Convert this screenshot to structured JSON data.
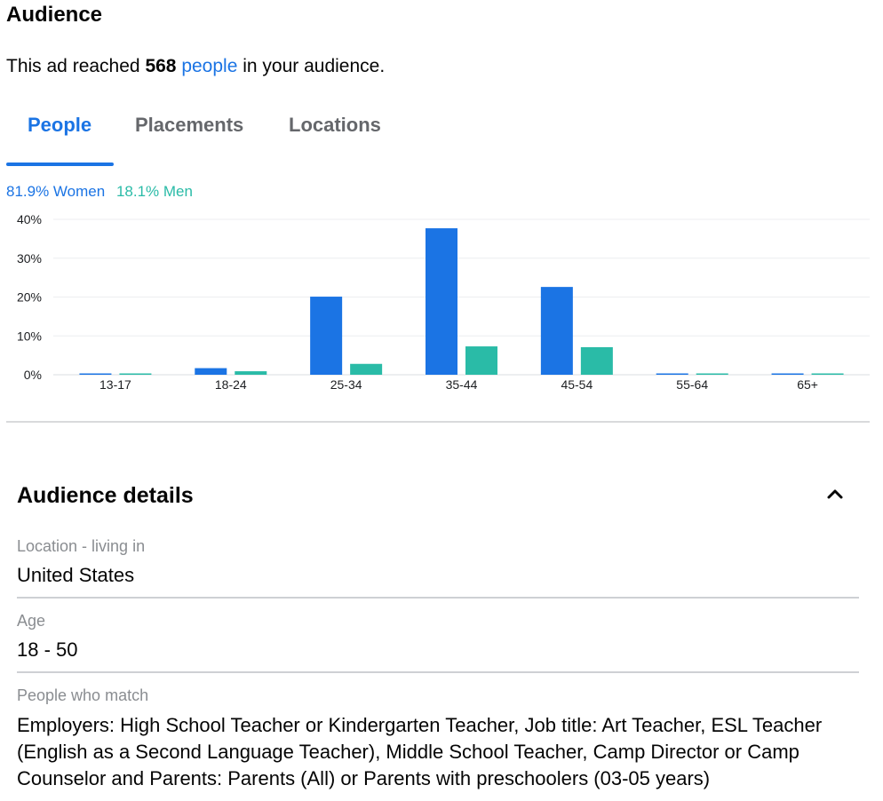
{
  "audience": {
    "title": "Audience",
    "reach_prefix": "This ad reached ",
    "reach_count": "568",
    "reach_link": "people",
    "reach_suffix": " in your audience."
  },
  "tabs": [
    {
      "label": "People",
      "active": true
    },
    {
      "label": "Placements",
      "active": false
    },
    {
      "label": "Locations",
      "active": false
    }
  ],
  "gender": {
    "women_label": "81.9% Women",
    "men_label": "18.1% Men",
    "women_color": "#1b74e4",
    "men_color": "#2abba7"
  },
  "chart_data": {
    "type": "bar",
    "categories": [
      "13-17",
      "18-24",
      "25-34",
      "35-44",
      "45-54",
      "55-64",
      "65+"
    ],
    "series": [
      {
        "name": "Women",
        "color": "#1b74e4",
        "values": [
          0.3,
          1.7,
          20.1,
          37.7,
          22.6,
          0.3,
          0.3
        ]
      },
      {
        "name": "Men",
        "color": "#2abba7",
        "values": [
          0.3,
          0.9,
          2.8,
          7.3,
          7.1,
          0.3,
          0.3
        ]
      }
    ],
    "yticks": [
      "0%",
      "10%",
      "20%",
      "30%",
      "40%"
    ],
    "ylim": [
      0,
      40
    ],
    "grid": true
  },
  "details": {
    "title": "Audience details",
    "fields": [
      {
        "label": "Location - living in",
        "value": "United States"
      },
      {
        "label": "Age",
        "value": "18 - 50"
      },
      {
        "label": "People who match",
        "value": "Employers: High School Teacher or Kindergarten Teacher, Job title: Art Teacher, ESL Teacher (English as a Second Language Teacher), Middle School Teacher, Camp Director or Camp Counselor and Parents: Parents (All) or Parents with preschoolers (03-05 years)"
      }
    ]
  }
}
